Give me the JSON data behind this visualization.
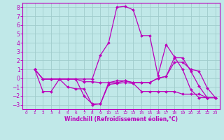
{
  "xlabel": "Windchill (Refroidissement éolien,°C)",
  "xlim": [
    -0.5,
    23.5
  ],
  "ylim": [
    -3.5,
    8.5
  ],
  "xticks": [
    0,
    1,
    2,
    3,
    4,
    5,
    6,
    7,
    8,
    9,
    10,
    11,
    12,
    13,
    14,
    15,
    16,
    17,
    18,
    19,
    20,
    21,
    22,
    23
  ],
  "yticks": [
    -3,
    -2,
    -1,
    0,
    1,
    2,
    3,
    4,
    5,
    6,
    7,
    8
  ],
  "background_color": "#c0e8e8",
  "grid_color": "#a0cccc",
  "line_color": "#bb00bb",
  "series": [
    {
      "x": [
        1,
        2,
        3,
        4,
        5,
        6,
        7,
        8,
        9,
        10,
        11,
        12,
        13,
        14,
        15,
        16,
        17,
        18,
        19,
        20,
        21,
        22,
        23
      ],
      "y": [
        1.0,
        -0.1,
        -0.1,
        -0.1,
        -0.1,
        -0.1,
        -0.1,
        -0.1,
        2.6,
        4.0,
        8.0,
        8.1,
        7.7,
        4.8,
        4.8,
        0.3,
        3.8,
        2.4,
        1.0,
        -1.3,
        -2.2,
        -2.2,
        -2.2
      ]
    },
    {
      "x": [
        1,
        2,
        3,
        4,
        5,
        6,
        7,
        8,
        9,
        10,
        11,
        12,
        13,
        14,
        15,
        16,
        17,
        18,
        19,
        20,
        21,
        22,
        23
      ],
      "y": [
        1.0,
        -0.1,
        -0.1,
        -0.1,
        -0.1,
        -0.1,
        -2.0,
        -2.9,
        -2.9,
        -0.5,
        -0.5,
        -0.3,
        -0.5,
        -0.5,
        -0.5,
        0.0,
        0.2,
        2.3,
        2.3,
        0.8,
        -0.9,
        -2.2,
        -2.2
      ]
    },
    {
      "x": [
        1,
        2,
        3,
        4,
        5,
        6,
        7,
        8,
        9,
        10,
        11,
        12,
        13,
        14,
        15,
        16,
        17,
        18,
        19,
        20,
        21,
        22,
        23
      ],
      "y": [
        1.0,
        -1.5,
        -1.5,
        -0.1,
        -1.0,
        -1.2,
        -1.2,
        -3.0,
        -2.9,
        -0.7,
        -0.6,
        -0.5,
        -0.6,
        -1.5,
        -1.5,
        -1.5,
        -1.5,
        -1.5,
        -1.8,
        -1.8,
        -1.8,
        -2.2,
        -2.2
      ]
    },
    {
      "x": [
        1,
        2,
        3,
        4,
        5,
        6,
        7,
        8,
        9,
        10,
        11,
        12,
        13,
        14,
        15,
        16,
        17,
        18,
        19,
        20,
        21,
        22,
        23
      ],
      "y": [
        1.0,
        -0.1,
        -0.1,
        -0.1,
        -0.1,
        -0.1,
        -0.4,
        -0.4,
        -0.5,
        -0.5,
        -0.3,
        -0.3,
        -0.5,
        -0.5,
        -0.5,
        0.0,
        0.2,
        1.8,
        1.8,
        1.0,
        0.8,
        -1.1,
        -2.2
      ]
    }
  ]
}
